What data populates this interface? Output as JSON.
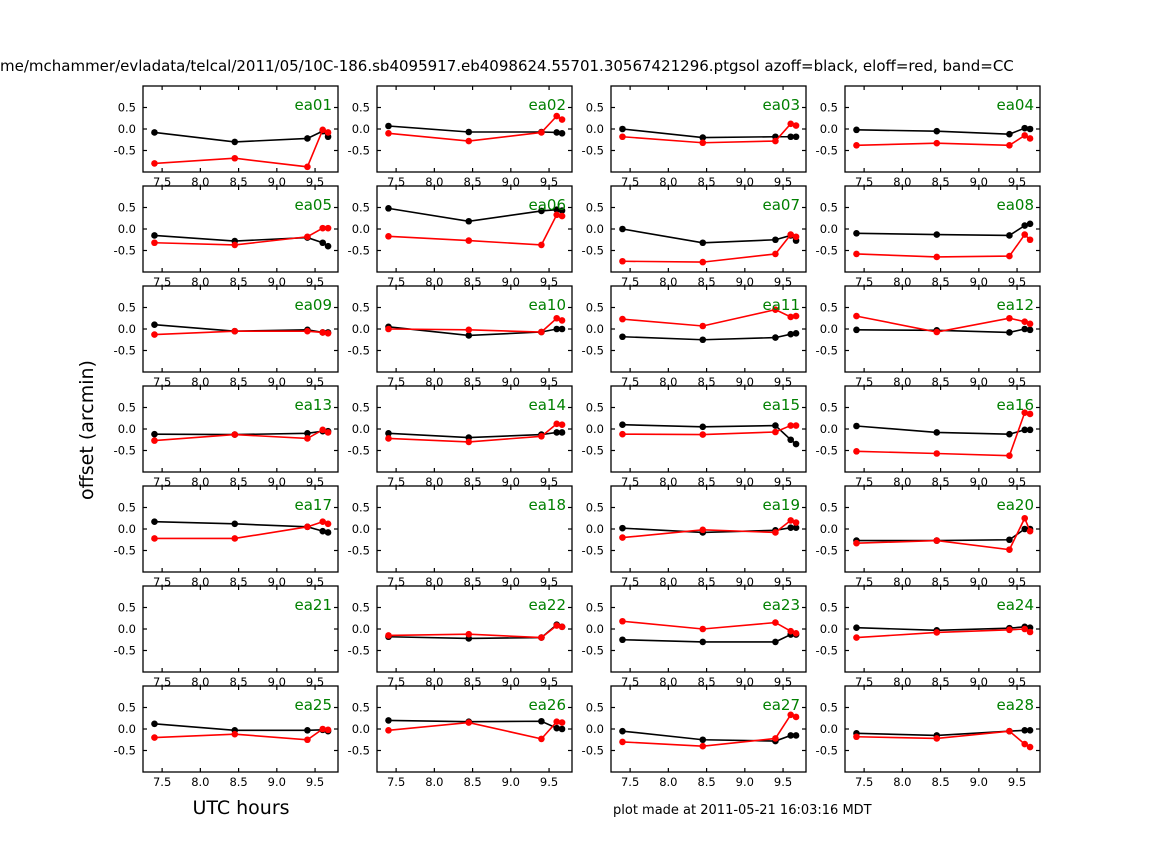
{
  "title": "me/mchammer/evladata/telcal/2011/05/10C-186.sb4095917.eb4098624.55701.30567421296.ptgsol  azoff=black, eloff=red, band=CC",
  "ylabel": "offset (arcmin)",
  "xlabel": "UTC hours",
  "footer": "plot made at 2011-05-21 16:03:16 MDT",
  "legend": {
    "azoff_color_name": "black",
    "eloff_color_name": "red",
    "band": "CC"
  },
  "colors": {
    "azoff": "#000000",
    "eloff": "#ff0000",
    "panel_label": "#008000",
    "frame": "#000000"
  },
  "chart_data": {
    "type": "line",
    "grid": false,
    "legend_position": "in-title",
    "xlabel": "UTC hours",
    "ylabel": "offset (arcmin)",
    "xlim": [
      7.25,
      9.8
    ],
    "ylim": [
      -1.0,
      1.0
    ],
    "xticks": [
      7.5,
      8.0,
      8.5,
      9.0,
      9.5
    ],
    "yticks": [
      0.5,
      0.0,
      -0.5
    ],
    "x": [
      7.4,
      8.45,
      9.4,
      9.6,
      9.67
    ],
    "series_names": [
      "azoff",
      "eloff"
    ],
    "panels": [
      {
        "label": "ea01",
        "azoff": [
          -0.08,
          -0.3,
          -0.22,
          -0.05,
          -0.18
        ],
        "eloff": [
          -0.8,
          -0.68,
          -0.88,
          -0.02,
          -0.08
        ]
      },
      {
        "label": "ea02",
        "azoff": [
          0.07,
          -0.07,
          -0.07,
          -0.08,
          -0.1
        ],
        "eloff": [
          -0.1,
          -0.28,
          -0.08,
          0.3,
          0.22
        ]
      },
      {
        "label": "ea03",
        "azoff": [
          0.0,
          -0.2,
          -0.18,
          -0.18,
          -0.18
        ],
        "eloff": [
          -0.18,
          -0.32,
          -0.28,
          0.12,
          0.08
        ]
      },
      {
        "label": "ea04",
        "azoff": [
          -0.02,
          -0.05,
          -0.12,
          0.02,
          0.0
        ],
        "eloff": [
          -0.38,
          -0.33,
          -0.38,
          -0.15,
          -0.22
        ]
      },
      {
        "label": "ea05",
        "azoff": [
          -0.15,
          -0.28,
          -0.2,
          -0.32,
          -0.4
        ],
        "eloff": [
          -0.32,
          -0.37,
          -0.18,
          0.02,
          0.02
        ]
      },
      {
        "label": "ea06",
        "azoff": [
          0.48,
          0.18,
          0.42,
          0.45,
          0.43
        ],
        "eloff": [
          -0.17,
          -0.27,
          -0.37,
          0.33,
          0.3
        ]
      },
      {
        "label": "ea07",
        "azoff": [
          0.0,
          -0.32,
          -0.25,
          -0.15,
          -0.27
        ],
        "eloff": [
          -0.75,
          -0.77,
          -0.58,
          -0.13,
          -0.18
        ]
      },
      {
        "label": "ea08",
        "azoff": [
          -0.1,
          -0.13,
          -0.15,
          0.08,
          0.12
        ],
        "eloff": [
          -0.58,
          -0.65,
          -0.63,
          -0.13,
          -0.25
        ]
      },
      {
        "label": "ea09",
        "azoff": [
          0.1,
          -0.05,
          -0.02,
          -0.08,
          -0.08
        ],
        "eloff": [
          -0.13,
          -0.05,
          -0.05,
          -0.08,
          -0.1
        ]
      },
      {
        "label": "ea10",
        "azoff": [
          0.05,
          -0.15,
          -0.07,
          0.0,
          0.0
        ],
        "eloff": [
          0.0,
          -0.02,
          -0.07,
          0.25,
          0.2
        ]
      },
      {
        "label": "ea11",
        "azoff": [
          -0.18,
          -0.25,
          -0.2,
          -0.12,
          -0.1
        ],
        "eloff": [
          0.23,
          0.07,
          0.45,
          0.28,
          0.3
        ]
      },
      {
        "label": "ea12",
        "azoff": [
          -0.02,
          -0.03,
          -0.08,
          0.0,
          -0.02
        ],
        "eloff": [
          0.3,
          -0.07,
          0.25,
          0.17,
          0.12
        ]
      },
      {
        "label": "ea13",
        "azoff": [
          -0.12,
          -0.13,
          -0.1,
          -0.05,
          -0.05
        ],
        "eloff": [
          -0.27,
          -0.13,
          -0.22,
          -0.02,
          -0.08
        ]
      },
      {
        "label": "ea14",
        "azoff": [
          -0.1,
          -0.2,
          -0.13,
          -0.08,
          -0.08
        ],
        "eloff": [
          -0.22,
          -0.3,
          -0.17,
          0.12,
          0.1
        ]
      },
      {
        "label": "ea15",
        "azoff": [
          0.1,
          0.05,
          0.08,
          -0.25,
          -0.35
        ],
        "eloff": [
          -0.12,
          -0.13,
          -0.07,
          0.08,
          0.08
        ]
      },
      {
        "label": "ea16",
        "azoff": [
          0.07,
          -0.08,
          -0.12,
          -0.02,
          -0.02
        ],
        "eloff": [
          -0.52,
          -0.57,
          -0.62,
          0.38,
          0.35
        ]
      },
      {
        "label": "ea17",
        "azoff": [
          0.17,
          0.12,
          0.05,
          -0.05,
          -0.08
        ],
        "eloff": [
          -0.22,
          -0.22,
          0.05,
          0.17,
          0.12
        ]
      },
      {
        "label": "ea18",
        "azoff": [],
        "eloff": []
      },
      {
        "label": "ea19",
        "azoff": [
          0.02,
          -0.08,
          -0.03,
          0.03,
          0.03
        ],
        "eloff": [
          -0.2,
          -0.02,
          -0.08,
          0.2,
          0.15
        ]
      },
      {
        "label": "ea20",
        "azoff": [
          -0.27,
          -0.27,
          -0.25,
          0.0,
          0.0
        ],
        "eloff": [
          -0.33,
          -0.27,
          -0.48,
          0.25,
          -0.05
        ]
      },
      {
        "label": "ea21",
        "azoff": [],
        "eloff": []
      },
      {
        "label": "ea22",
        "azoff": [
          -0.18,
          -0.22,
          -0.2,
          0.1,
          0.05
        ],
        "eloff": [
          -0.15,
          -0.12,
          -0.2,
          0.08,
          0.05
        ]
      },
      {
        "label": "ea23",
        "azoff": [
          -0.25,
          -0.3,
          -0.3,
          -0.13,
          -0.13
        ],
        "eloff": [
          0.18,
          0.0,
          0.15,
          -0.05,
          -0.1
        ]
      },
      {
        "label": "ea24",
        "azoff": [
          0.03,
          -0.03,
          0.02,
          0.05,
          0.03
        ],
        "eloff": [
          -0.2,
          -0.08,
          -0.02,
          0.0,
          -0.07
        ]
      },
      {
        "label": "ea25",
        "azoff": [
          0.12,
          -0.03,
          -0.03,
          -0.02,
          -0.05
        ],
        "eloff": [
          -0.2,
          -0.12,
          -0.25,
          0.0,
          -0.02
        ]
      },
      {
        "label": "ea26",
        "azoff": [
          0.2,
          0.17,
          0.18,
          0.02,
          0.0
        ],
        "eloff": [
          -0.03,
          0.15,
          -0.23,
          0.17,
          0.15
        ]
      },
      {
        "label": "ea27",
        "azoff": [
          -0.05,
          -0.25,
          -0.28,
          -0.15,
          -0.15
        ],
        "eloff": [
          -0.3,
          -0.4,
          -0.22,
          0.33,
          0.28
        ]
      },
      {
        "label": "ea28",
        "azoff": [
          -0.1,
          -0.15,
          -0.05,
          -0.03,
          -0.03
        ],
        "eloff": [
          -0.18,
          -0.22,
          -0.05,
          -0.35,
          -0.42
        ]
      }
    ]
  }
}
